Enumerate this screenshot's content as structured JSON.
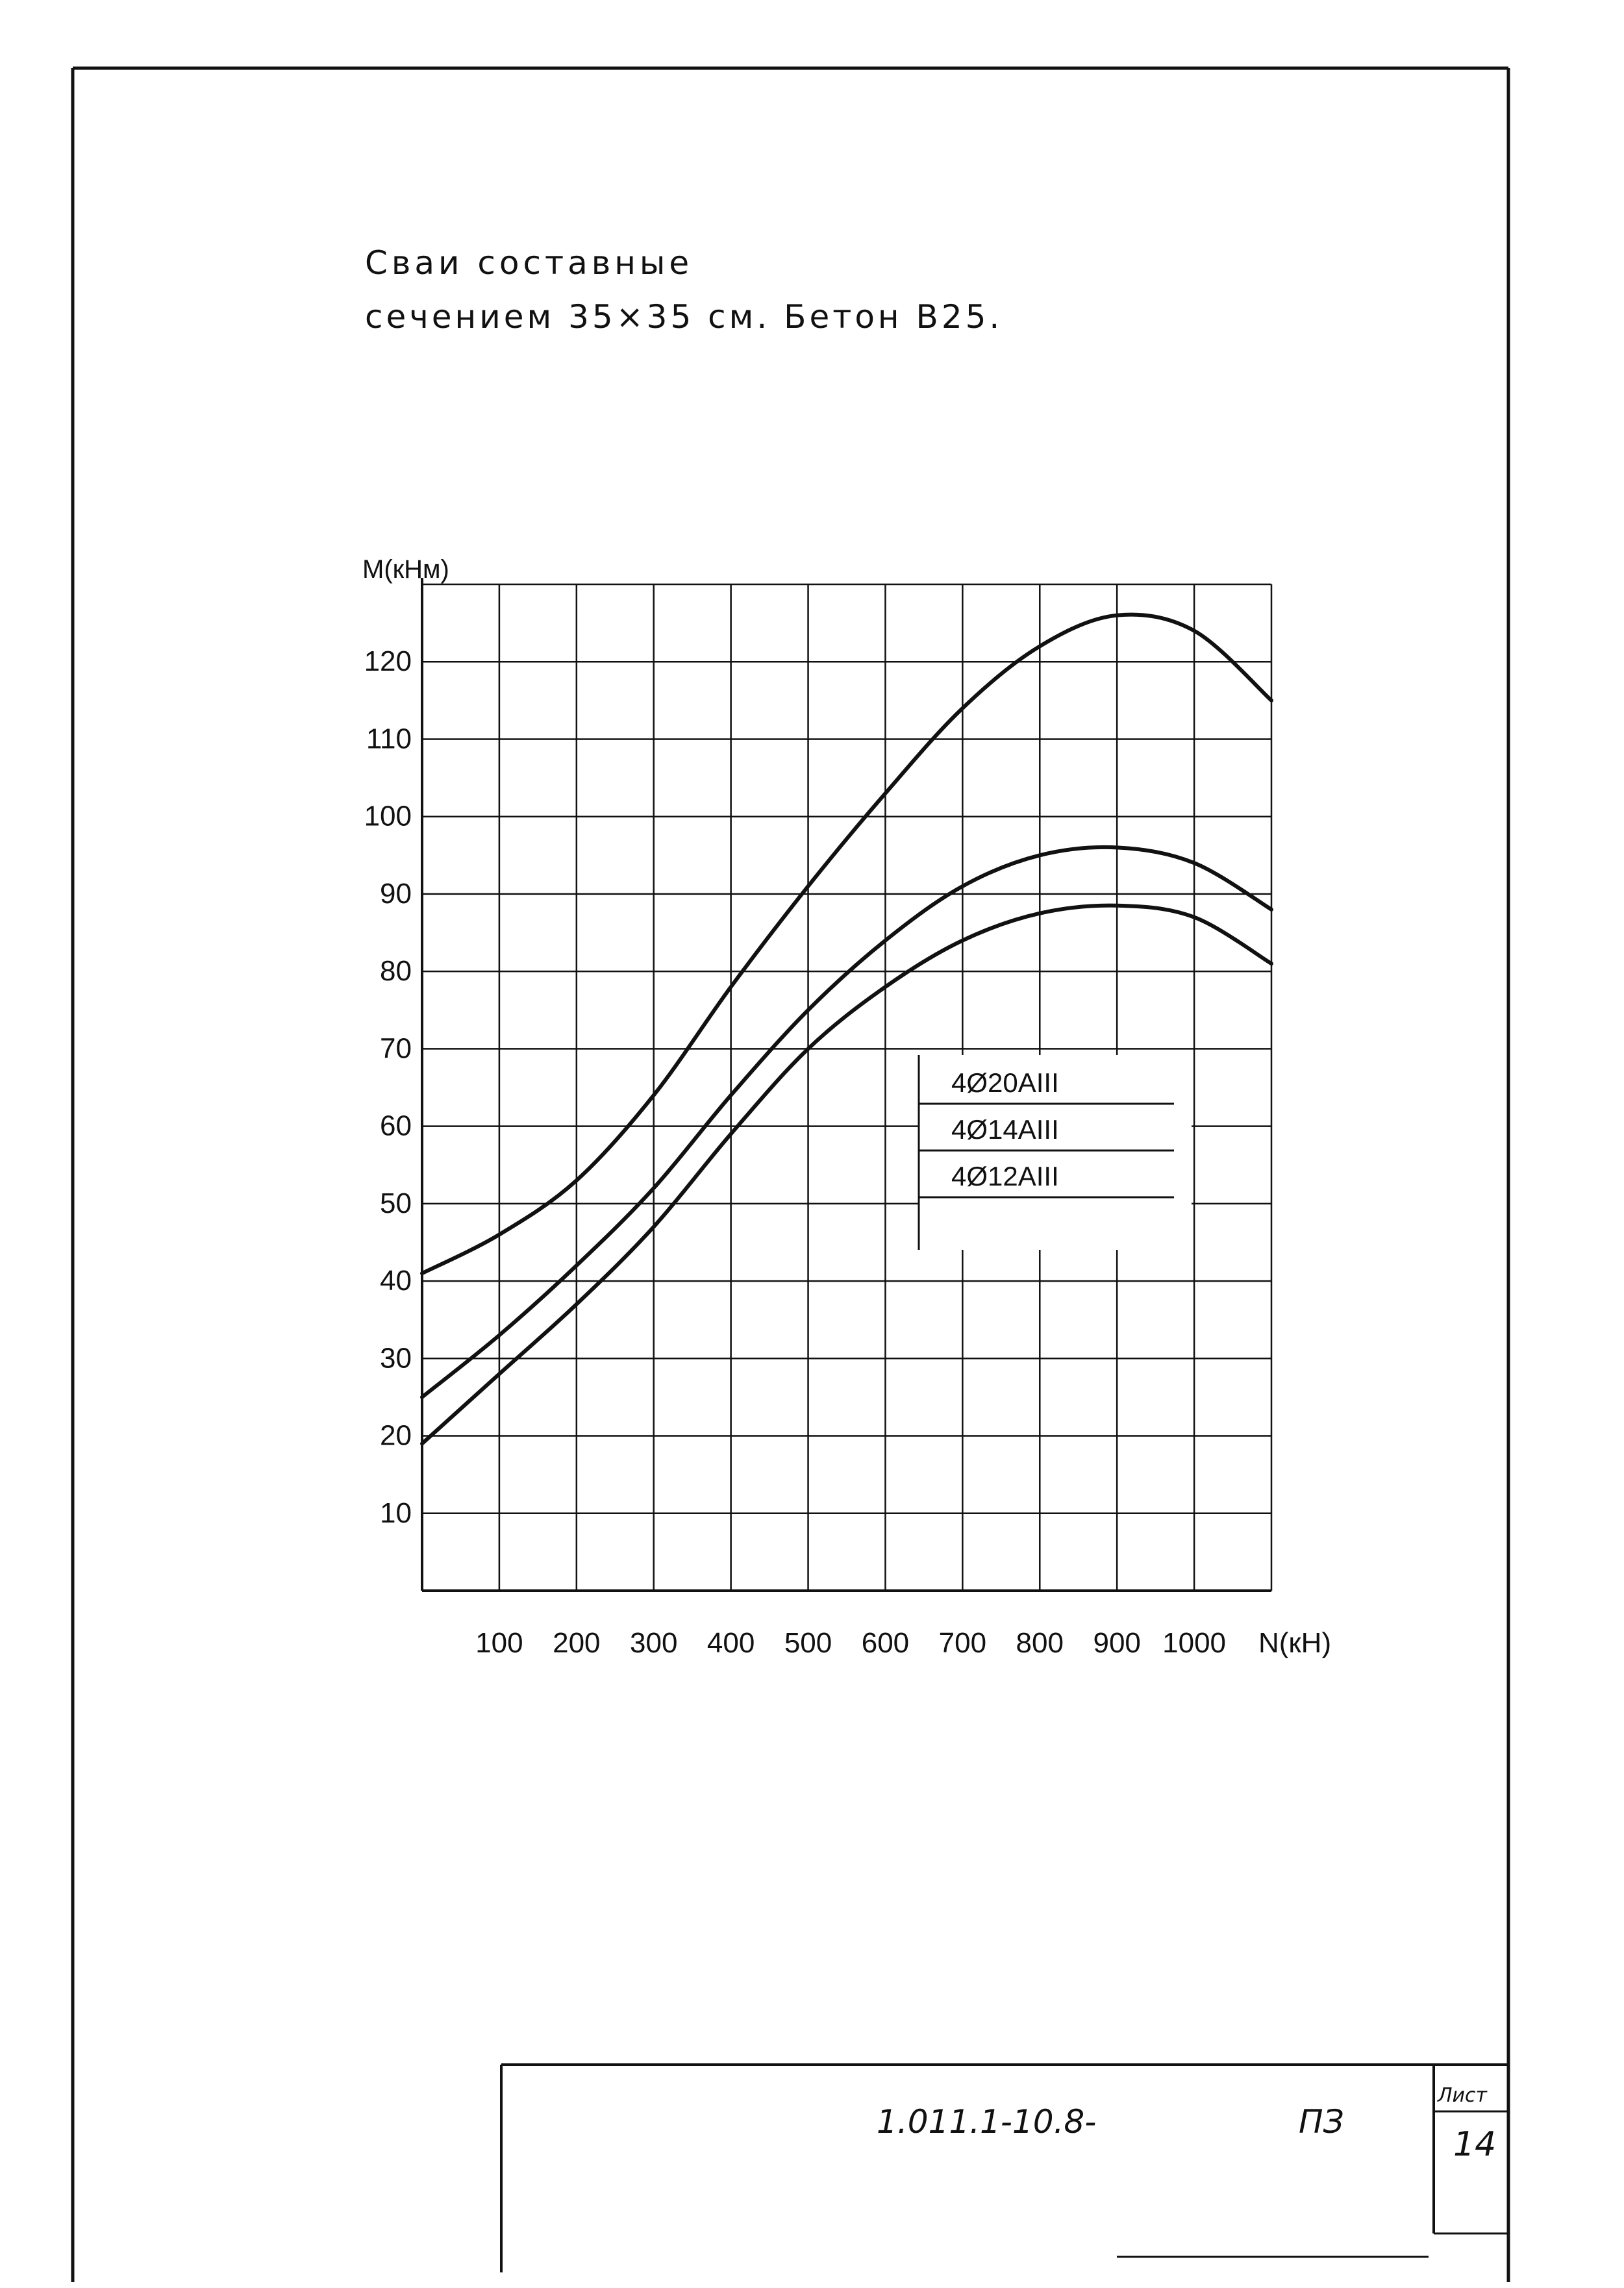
{
  "page": {
    "title_line1": "Сваи составные",
    "title_line2": "сечением 35×35 см. Бетон В25."
  },
  "stamp": {
    "code": "1.011.1-10.8-",
    "doc": "ПЗ",
    "sheet_label": "Лист",
    "sheet_number": "14"
  },
  "chart_data": {
    "type": "line",
    "xlabel": "N(кН)",
    "ylabel": "M(кНм)",
    "xlim": [
      0,
      1100
    ],
    "ylim": [
      0,
      130
    ],
    "x_ticks": [
      {
        "value": 100,
        "label": "100"
      },
      {
        "value": 200,
        "label": "200"
      },
      {
        "value": 300,
        "label": "300"
      },
      {
        "value": 400,
        "label": "400"
      },
      {
        "value": 500,
        "label": "500"
      },
      {
        "value": 600,
        "label": "600"
      },
      {
        "value": 700,
        "label": "700"
      },
      {
        "value": 800,
        "label": "800"
      },
      {
        "value": 900,
        "label": "900"
      },
      {
        "value": 1000,
        "label": "1000"
      }
    ],
    "y_ticks": [
      {
        "value": 10,
        "label": "10"
      },
      {
        "value": 20,
        "label": "20"
      },
      {
        "value": 30,
        "label": "30"
      },
      {
        "value": 40,
        "label": "40"
      },
      {
        "value": 50,
        "label": "50"
      },
      {
        "value": 60,
        "label": "60"
      },
      {
        "value": 70,
        "label": "70"
      },
      {
        "value": 80,
        "label": "80"
      },
      {
        "value": 90,
        "label": "90"
      },
      {
        "value": 100,
        "label": "100"
      },
      {
        "value": 110,
        "label": "110"
      },
      {
        "value": 120,
        "label": "120"
      }
    ],
    "grid": true,
    "legend_position": "center-right",
    "series": [
      {
        "name": "4Ø20АIII",
        "x": [
          0,
          100,
          200,
          300,
          400,
          500,
          600,
          700,
          800,
          900,
          1000,
          1100
        ],
        "y": [
          41,
          46,
          53,
          64,
          78,
          91,
          103,
          114,
          122,
          126,
          124,
          115
        ]
      },
      {
        "name": "4Ø14АIII",
        "x": [
          0,
          100,
          200,
          300,
          400,
          500,
          600,
          700,
          800,
          900,
          1000,
          1100
        ],
        "y": [
          25,
          33,
          42,
          52,
          64,
          75,
          84,
          91,
          95,
          96,
          94,
          88
        ]
      },
      {
        "name": "4Ø12АIII",
        "x": [
          0,
          100,
          200,
          300,
          400,
          500,
          600,
          700,
          800,
          900,
          1000,
          1100
        ],
        "y": [
          19,
          28,
          37,
          47,
          59,
          70,
          78,
          84,
          87.5,
          88.5,
          87,
          81
        ]
      }
    ]
  }
}
